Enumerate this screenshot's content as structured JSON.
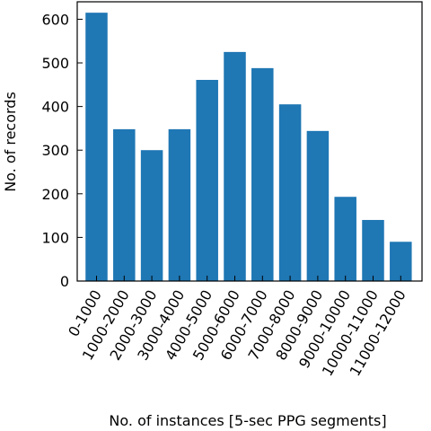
{
  "chart_data": {
    "type": "bar",
    "title": "",
    "xlabel": "No. of instances [5-sec PPG segments]",
    "ylabel": "No. of records",
    "categories": [
      "0-1000",
      "1000-2000",
      "2000-3000",
      "3000-4000",
      "4000-5000",
      "5000-6000",
      "6000-7000",
      "7000-8000",
      "8000-9000",
      "9000-10000",
      "10000-11000",
      "11000-12000"
    ],
    "values": [
      615,
      348,
      300,
      348,
      461,
      525,
      488,
      405,
      344,
      193,
      140,
      90
    ],
    "ylim": [
      0,
      640
    ],
    "yticks": [
      0,
      100,
      200,
      300,
      400,
      500,
      600
    ],
    "bar_color": "#1f77b4",
    "grid": false,
    "legend": "none"
  }
}
